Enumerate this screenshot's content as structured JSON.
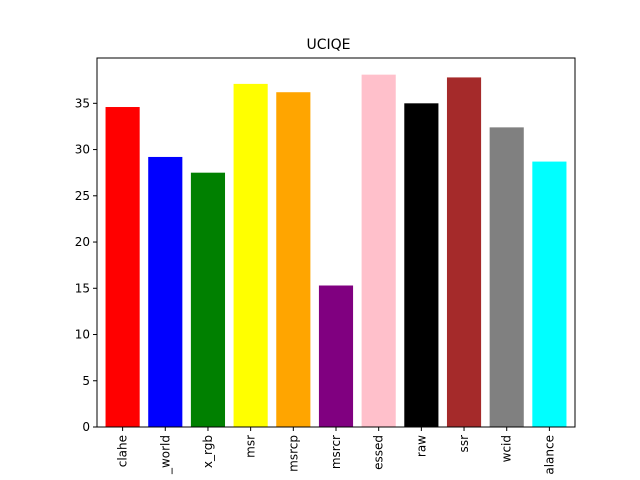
{
  "chart_data": {
    "type": "bar",
    "title": "UCIQE",
    "xlabel": "",
    "ylabel": "",
    "categories": [
      "clahe",
      "_world",
      "x_rgb",
      "msr",
      "msrcp",
      "msrcr",
      "essed",
      "raw",
      "ssr",
      "wcid",
      "alance"
    ],
    "values": [
      34.6,
      29.2,
      27.5,
      37.1,
      36.2,
      15.3,
      38.1,
      35.0,
      37.8,
      32.4,
      28.7
    ],
    "colors": [
      "#ff0000",
      "#0000ff",
      "#008000",
      "#ffff00",
      "#ffa500",
      "#800080",
      "#ffc0cb",
      "#000000",
      "#a52a2a",
      "#808080",
      "#00ffff"
    ],
    "ylim": [
      0,
      40
    ],
    "yticks": [
      0,
      5,
      10,
      15,
      20,
      25,
      30,
      35
    ],
    "grid": false
  }
}
